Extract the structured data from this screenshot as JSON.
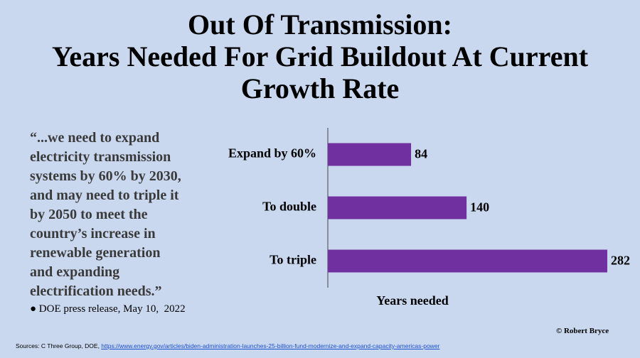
{
  "chart_data": {
    "type": "bar",
    "orientation": "horizontal",
    "title": "Out Of Transmission:\nYears Needed For Grid Buildout At Current\nGrowth Rate",
    "categories": [
      "Expand by 60%",
      "To double",
      "To triple"
    ],
    "values": [
      84,
      140,
      282
    ],
    "color": "#7030a0",
    "x_label": "Years needed"
  },
  "quote": "“...we need to expand\nelectricity transmission\nsystems by 60% by 2030,\nand may need to triple it\nby 2050 to meet the\ncountry’s increase in\nrenewable generation\nand expanding\nelectrification needs.”",
  "quote_source": "● DOE press release, May 10,  2022",
  "sources_prefix": "Sources: C Three Group, DOE, ",
  "sources_link": "https://www.energy.gov/articles/biden-administration-launches-25-billion-fund-modernize-and-expand-capacity-americas-power",
  "credit": "© Robert Bryce"
}
